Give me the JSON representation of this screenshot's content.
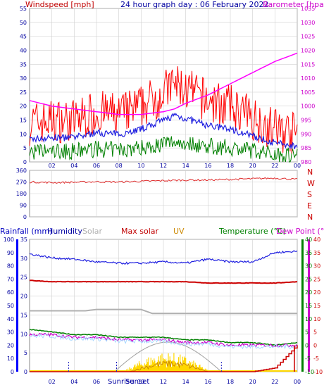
{
  "title": "24 hour graph day : 06 February 2022",
  "colors": {
    "windspeed": "#ff0000",
    "wind_avg": "#2020e0",
    "wind_low": "#008000",
    "barometer": "#ff00ff",
    "direction": "#e03030",
    "humidity": "#2020e0",
    "solar": "#b0b0b0",
    "max_solar": "#cc0000",
    "uv": "#cc8800",
    "temperature": "#008000",
    "dewpoint": "#cc00cc",
    "rain_axis": "#0000ff",
    "grid": "#d0d0d0"
  },
  "panel1": {
    "left_label": "Windspeed [mph]",
    "right_label": "Barometer [hpa]",
    "y_left_ticks": [
      "0",
      "5",
      "10",
      "15",
      "20",
      "25",
      "30",
      "35",
      "40",
      "45",
      "50",
      "55"
    ],
    "y_right_ticks": [
      "980",
      "985",
      "990",
      "995",
      "1000",
      "1005",
      "1010",
      "1015",
      "1020",
      "1025",
      "1030",
      "1035"
    ]
  },
  "panel2": {
    "y_ticks": [
      "0",
      "90",
      "180",
      "270",
      "360"
    ],
    "compass": [
      "N",
      "W",
      "S",
      "E",
      "N"
    ]
  },
  "panel3": {
    "labels": {
      "rainfall": "Rainfall (mm)",
      "humidity": "Humidity",
      "solar": "Solar",
      "max_solar": "Max solar",
      "uv": "UV",
      "temperature": "Temperature (°C)",
      "dewpoint": "Dew Point (°C)"
    },
    "y_humidity_ticks": [
      "0",
      "10",
      "20",
      "30",
      "40",
      "50",
      "60",
      "70",
      "80",
      "90",
      "100"
    ],
    "y_rain_ticks": [
      "0",
      "5",
      "10",
      "15",
      "20",
      "25",
      "30",
      "35"
    ],
    "y_temp_ticks": [
      "-10",
      "-5",
      "0",
      "5",
      "10",
      "15",
      "20",
      "25",
      "30",
      "35",
      "40"
    ],
    "sunrise_label": "Sunrise",
    "sunset_label": "Sunset"
  },
  "x_ticks": [
    "02",
    "04",
    "06",
    "08",
    "10",
    "12",
    "14",
    "16",
    "18",
    "20",
    "22",
    "00"
  ],
  "chart_data": [
    {
      "type": "line",
      "title": "24 hour graph day : 06 February 2022",
      "ylabel": "Windspeed [mph]",
      "y2label": "Barometer [hpa]",
      "ylim": [
        0,
        55
      ],
      "y2lim": [
        980,
        1035
      ],
      "x": [
        "00",
        "02",
        "04",
        "06",
        "08",
        "10",
        "12",
        "13",
        "14",
        "16",
        "18",
        "20",
        "22",
        "24"
      ],
      "series": [
        {
          "name": "Windspeed [mph]",
          "values": [
            13,
            14,
            14,
            17,
            16,
            19,
            24,
            27,
            25,
            21,
            19,
            15,
            11,
            9
          ]
        },
        {
          "name": "Barometer [hpa]",
          "values": [
            1002,
            1000,
            999,
            998,
            997,
            997,
            998,
            999,
            1001,
            1004,
            1008,
            1012,
            1016,
            1019
          ]
        }
      ]
    },
    {
      "type": "line",
      "ylim": [
        0,
        360
      ],
      "x": [
        "00",
        "02",
        "04",
        "06",
        "08",
        "10",
        "12",
        "14",
        "16",
        "18",
        "20",
        "22",
        "24"
      ],
      "series": [
        {
          "values": [
            270,
            265,
            268,
            272,
            270,
            275,
            280,
            285,
            285,
            290,
            295,
            300,
            290
          ]
        }
      ]
    },
    {
      "type": "line",
      "x": [
        "00",
        "02",
        "04",
        "06",
        "08",
        "10",
        "12",
        "14",
        "16",
        "18",
        "20",
        "22",
        "24"
      ],
      "series": [
        {
          "name": "Humidity",
          "values": [
            89,
            86,
            85,
            83,
            82,
            82,
            83,
            82,
            85,
            83,
            83,
            90,
            91
          ]
        },
        {
          "name": "Max solar",
          "values": [
            69,
            68,
            68,
            68,
            68,
            68,
            68,
            68,
            67,
            67,
            67,
            67,
            68
          ]
        },
        {
          "name": "Temperature (°C)",
          "values": [
            6,
            5,
            4,
            4,
            3,
            3,
            3,
            2,
            2,
            1,
            1,
            0,
            1
          ]
        },
        {
          "name": "Dew Point (°C)",
          "values": [
            4,
            4,
            3,
            3,
            2,
            2,
            2,
            1,
            1,
            0,
            0,
            0,
            0
          ]
        },
        {
          "name": "Rainfall (mm)",
          "values": [
            0,
            0,
            0,
            0,
            0,
            0,
            0,
            0,
            0,
            0,
            0,
            1,
            7
          ]
        }
      ]
    }
  ]
}
